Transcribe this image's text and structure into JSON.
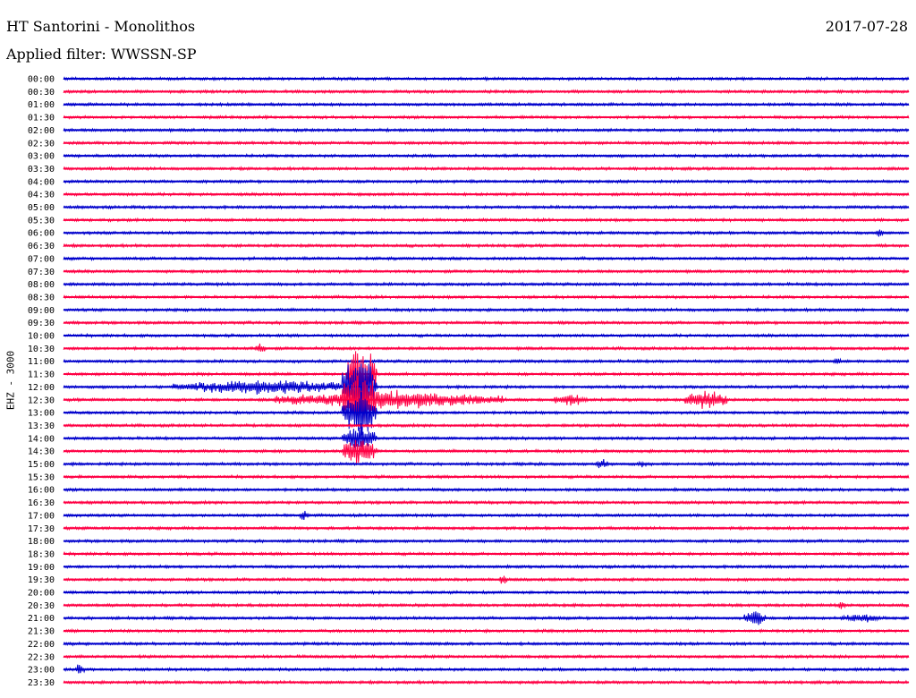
{
  "header": {
    "station": "HT Santorini - Monolithos",
    "date": "2017-07-28",
    "filter_text": "Applied filter: WWSSN-SP"
  },
  "chart_data": {
    "type": "line",
    "title": "HT Santorini - Monolithos",
    "ylabel": "EHZ - 3000",
    "xlabel": "",
    "grid": false,
    "trace_colors": [
      "#0000cc",
      "#ff0044"
    ],
    "rows": [
      "00:00",
      "00:30",
      "01:00",
      "01:30",
      "02:00",
      "02:30",
      "03:00",
      "03:30",
      "04:00",
      "04:30",
      "05:00",
      "05:30",
      "06:00",
      "06:30",
      "07:00",
      "07:30",
      "08:00",
      "08:30",
      "09:00",
      "09:30",
      "10:00",
      "10:30",
      "11:00",
      "11:30",
      "12:00",
      "12:30",
      "13:00",
      "13:30",
      "14:00",
      "14:30",
      "15:00",
      "15:30",
      "16:00",
      "16:30",
      "17:00",
      "17:30",
      "18:00",
      "18:30",
      "19:00",
      "19:30",
      "20:00",
      "20:30",
      "21:00",
      "21:30",
      "22:00",
      "22:30",
      "23:00",
      "23:30"
    ],
    "events": [
      {
        "row": "11:30",
        "start": 0.335,
        "end": 0.37,
        "amplitude": 40
      },
      {
        "row": "12:00",
        "start": 0.13,
        "end": 0.35,
        "amplitude": 10
      },
      {
        "row": "12:00",
        "start": 0.33,
        "end": 0.37,
        "amplitude": 45
      },
      {
        "row": "12:30",
        "start": 0.25,
        "end": 0.52,
        "amplitude": 12
      },
      {
        "row": "12:30",
        "start": 0.33,
        "end": 0.37,
        "amplitude": 45
      },
      {
        "row": "12:30",
        "start": 0.58,
        "end": 0.62,
        "amplitude": 9
      },
      {
        "row": "12:30",
        "start": 0.735,
        "end": 0.785,
        "amplitude": 14
      },
      {
        "row": "13:00",
        "start": 0.33,
        "end": 0.37,
        "amplitude": 35
      },
      {
        "row": "14:00",
        "start": 0.33,
        "end": 0.37,
        "amplitude": 20
      },
      {
        "row": "14:30",
        "start": 0.33,
        "end": 0.37,
        "amplitude": 20
      },
      {
        "row": "15:00",
        "start": 0.63,
        "end": 0.645,
        "amplitude": 8
      },
      {
        "row": "15:00",
        "start": 0.68,
        "end": 0.69,
        "amplitude": 5
      },
      {
        "row": "17:00",
        "start": 0.28,
        "end": 0.29,
        "amplitude": 8
      },
      {
        "row": "21:00",
        "start": 0.805,
        "end": 0.83,
        "amplitude": 12
      },
      {
        "row": "21:00",
        "start": 0.92,
        "end": 0.97,
        "amplitude": 6
      },
      {
        "row": "20:30",
        "start": 0.915,
        "end": 0.925,
        "amplitude": 7
      },
      {
        "row": "23:00",
        "start": 0.015,
        "end": 0.025,
        "amplitude": 10
      },
      {
        "row": "06:00",
        "start": 0.96,
        "end": 0.97,
        "amplitude": 6
      },
      {
        "row": "10:30",
        "start": 0.225,
        "end": 0.24,
        "amplitude": 7
      },
      {
        "row": "11:00",
        "start": 0.91,
        "end": 0.92,
        "amplitude": 6
      },
      {
        "row": "19:30",
        "start": 0.515,
        "end": 0.525,
        "amplitude": 7
      }
    ]
  }
}
